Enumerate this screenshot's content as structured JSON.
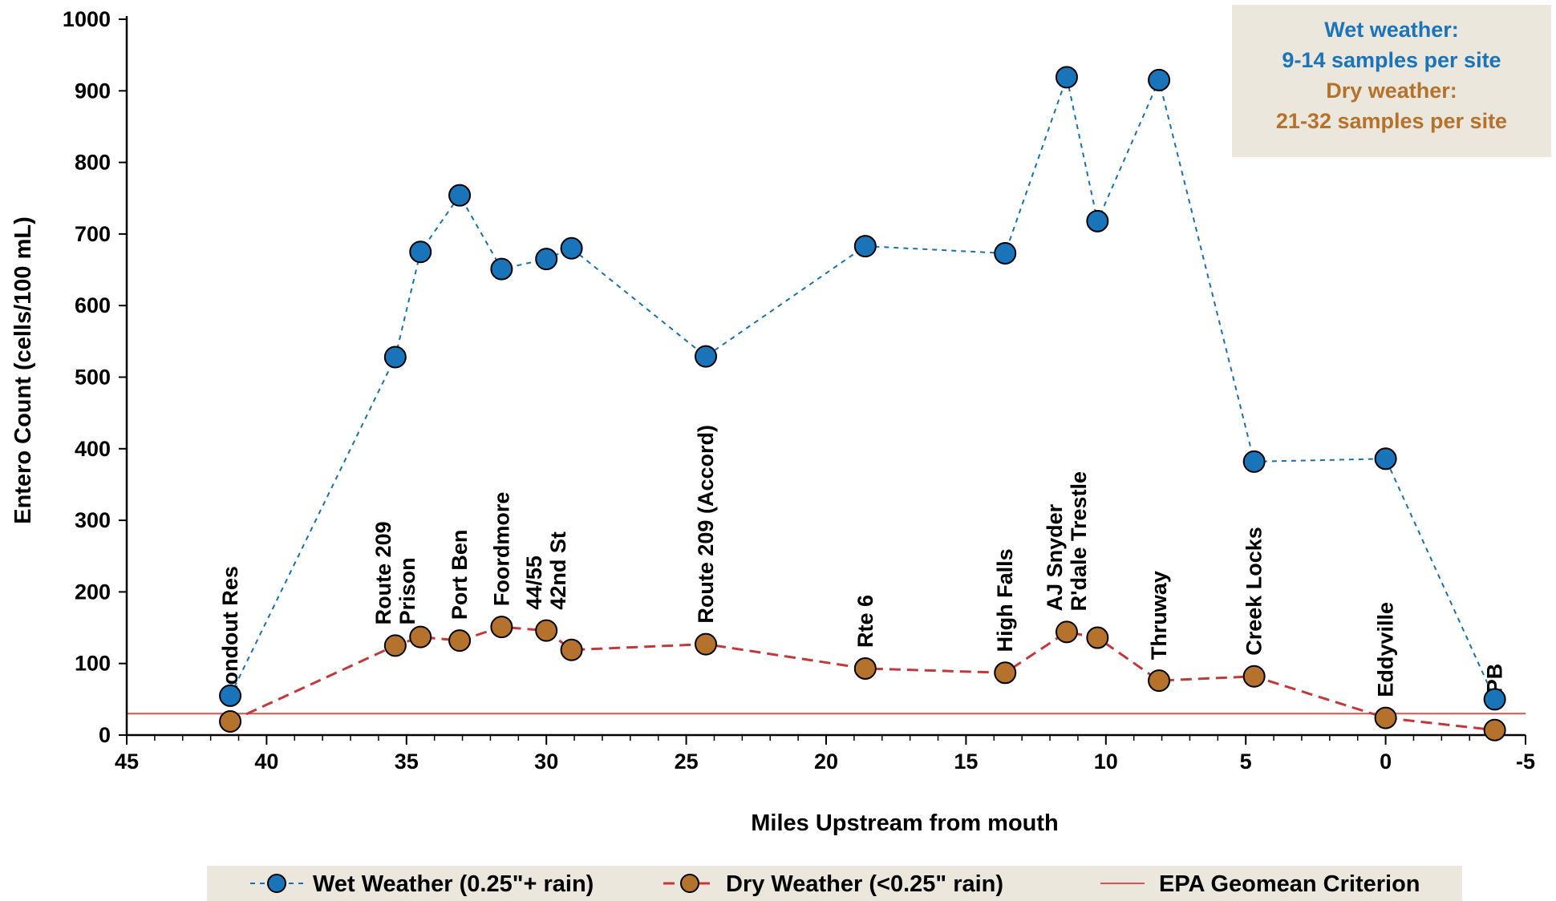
{
  "chart_data": {
    "type": "line",
    "xlabel": "Miles Upstream from mouth",
    "ylabel": "Entero Count (cells/100 mL)",
    "xlim": [
      45,
      -5
    ],
    "ylim": [
      0,
      1000
    ],
    "x_ticks": [
      45,
      40,
      35,
      30,
      25,
      20,
      15,
      10,
      5,
      0,
      -5
    ],
    "x_tick_labels": [
      "45",
      "40",
      "35",
      "30",
      "25",
      "20",
      "15",
      "10",
      "5",
      "0",
      "-5"
    ],
    "y_ticks": [
      0,
      100,
      200,
      300,
      400,
      500,
      600,
      700,
      800,
      900,
      1000
    ],
    "y_tick_labels": [
      "0",
      "100",
      "200",
      "300",
      "400",
      "500",
      "600",
      "700",
      "800",
      "900",
      "1000"
    ],
    "x_minor_step": 1,
    "grid": false,
    "sites": [
      {
        "x": 41.3,
        "lines": [
          "Rondout Res"
        ]
      },
      {
        "x": 35.4,
        "lines": [
          "Route 209",
          "Prison"
        ]
      },
      {
        "x": 33.1,
        "lines": [
          "Port Ben"
        ]
      },
      {
        "x": 31.6,
        "lines": [
          "Foordmore"
        ]
      },
      {
        "x": 30.0,
        "lines": [
          "44/55",
          "42nd St"
        ]
      },
      {
        "x": 24.3,
        "lines": [
          "Route 209 (Accord)"
        ]
      },
      {
        "x": 18.6,
        "lines": [
          "Rte 6"
        ]
      },
      {
        "x": 13.6,
        "lines": [
          "High Falls"
        ]
      },
      {
        "x": 11.4,
        "lines": [
          "AJ Snyder",
          "R'dale Trestle"
        ]
      },
      {
        "x": 8.1,
        "lines": [
          "Thruway"
        ]
      },
      {
        "x": 4.7,
        "lines": [
          "Creek Locks"
        ]
      },
      {
        "x": 0.0,
        "lines": [
          "Eddyville"
        ]
      },
      {
        "x": -3.9,
        "lines": [
          "KPB"
        ]
      }
    ],
    "series": [
      {
        "name": "Wet Weather (0.25\"+ rain)",
        "style": "dotted",
        "color": "#1a6fad",
        "marker_fill": "#1a74b9",
        "x": [
          41.3,
          35.4,
          34.5,
          33.1,
          31.6,
          30.0,
          29.1,
          24.3,
          18.6,
          13.6,
          11.4,
          10.3,
          8.1,
          4.7,
          0.0,
          -3.9
        ],
        "y": [
          55,
          528,
          675,
          754,
          651,
          665,
          680,
          529,
          683,
          673,
          919,
          718,
          915,
          382,
          386,
          50
        ]
      },
      {
        "name": "Dry Weather (<0.25\" rain)",
        "style": "dashed",
        "color": "#c0393b",
        "marker_fill": "#b5722c",
        "x": [
          41.3,
          35.4,
          34.5,
          33.1,
          31.6,
          30.0,
          29.1,
          24.3,
          18.6,
          13.6,
          11.4,
          10.3,
          8.1,
          4.7,
          0.0,
          -3.9
        ],
        "y": [
          19,
          125,
          137,
          132,
          151,
          146,
          119,
          127,
          93,
          87,
          144,
          136,
          76,
          82,
          24,
          7
        ]
      }
    ],
    "reference_line": {
      "name": "EPA Geomean Criterion",
      "y": 30,
      "color": "#d9534f"
    },
    "annotation": {
      "lines": [
        {
          "text": "Wet weather:",
          "color": "#1a74b9"
        },
        {
          "text": "9-14 samples per site",
          "color": "#1a74b9"
        },
        {
          "text": "Dry weather:",
          "color": "#b5722c"
        },
        {
          "text": "21-32 samples per site",
          "color": "#b5722c"
        }
      ],
      "background": "#ece7dc",
      "placement": "top-right"
    },
    "legend": {
      "placement": "bottom",
      "background": "#ece7dc",
      "entries": [
        {
          "label": "Wet Weather (0.25\"+ rain)",
          "kind": "wet"
        },
        {
          "label": "Dry Weather (<0.25\" rain)",
          "kind": "dry"
        },
        {
          "label": "EPA Geomean Criterion",
          "kind": "ref"
        }
      ]
    }
  }
}
